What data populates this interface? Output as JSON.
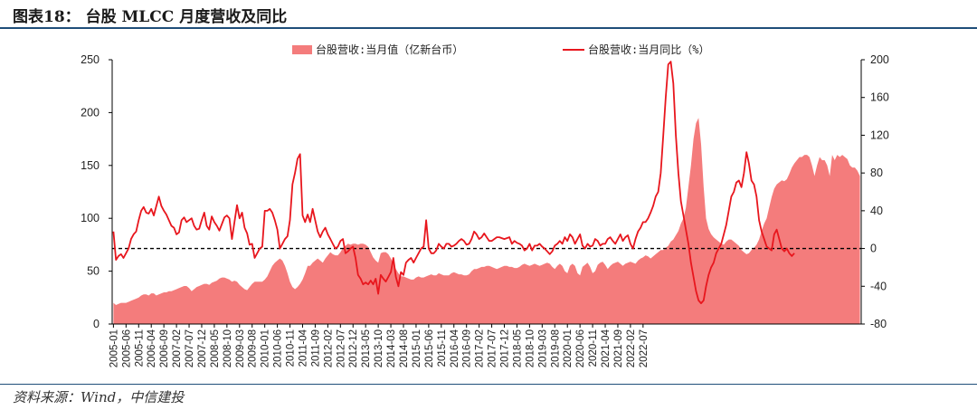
{
  "header": {
    "title": "图表18：  台股 MLCC 月度营收及同比"
  },
  "footer": {
    "source": "资料来源：Wind，中信建投"
  },
  "chart_data": {
    "type": "area",
    "title": "",
    "legend_placement": "top",
    "grid": false,
    "left_axis": {
      "ylim": [
        0,
        250
      ],
      "ticks": [
        0,
        50,
        100,
        150,
        200,
        250
      ]
    },
    "right_axis": {
      "ylim": [
        -80,
        200
      ],
      "ticks": [
        -80,
        -40,
        0,
        40,
        80,
        120,
        160,
        200
      ]
    },
    "x_tick_labels": [
      "2005-01",
      "2005-06",
      "2005-11",
      "2006-04",
      "2006-09",
      "2007-02",
      "2007-07",
      "2007-12",
      "2008-05",
      "2008-10",
      "2009-03",
      "2009-08",
      "2010-01",
      "2010-06",
      "2010-11",
      "2011-04",
      "2011-09",
      "2012-02",
      "2012-07",
      "2012-12",
      "2013-05",
      "2013-10",
      "2014-03",
      "2014-08",
      "2015-01",
      "2015-06",
      "2015-11",
      "2016-04",
      "2016-09",
      "2017-02",
      "2017-07",
      "2017-12",
      "2018-05",
      "2018-10",
      "2019-03",
      "2019-08",
      "2020-01",
      "2020-06",
      "2020-11",
      "2021-04",
      "2021-09",
      "2022-02",
      "2022-07"
    ],
    "zero_line_style": "dashed",
    "series": [
      {
        "name": "台股营收:当月值（亿新台币）",
        "type": "area",
        "axis": "left",
        "color": "#f47c7c",
        "values": [
          20,
          18,
          19,
          20,
          20,
          20,
          21,
          22,
          23,
          24,
          25,
          27,
          28,
          28,
          27,
          29,
          29,
          27,
          28,
          29,
          30,
          30,
          31,
          31,
          32,
          33,
          34,
          35,
          36,
          36,
          34,
          31,
          33,
          35,
          36,
          37,
          38,
          38,
          37,
          39,
          40,
          41,
          43,
          44,
          44,
          43,
          42,
          40,
          41,
          40,
          37,
          35,
          33,
          32,
          35,
          38,
          40,
          40,
          40,
          40,
          42,
          45,
          50,
          55,
          58,
          60,
          62,
          60,
          55,
          48,
          40,
          35,
          33,
          35,
          38,
          42,
          48,
          55,
          55,
          58,
          60,
          62,
          60,
          58,
          62,
          65,
          68,
          66,
          65,
          65,
          68,
          72,
          74,
          76,
          75,
          76,
          76,
          75,
          76,
          76,
          75,
          73,
          68,
          63,
          60,
          58,
          67,
          68,
          68,
          66,
          62,
          57,
          52,
          48,
          45,
          45,
          44,
          43,
          42,
          42,
          44,
          45,
          44,
          44,
          45,
          46,
          47,
          46,
          46,
          48,
          47,
          46,
          46,
          46,
          48,
          49,
          48,
          47,
          47,
          46,
          46,
          47,
          50,
          52,
          52,
          53,
          54,
          54,
          55,
          55,
          54,
          53,
          52,
          53,
          54,
          55,
          55,
          54,
          54,
          53,
          53,
          54,
          56,
          57,
          56,
          55,
          56,
          57,
          56,
          55,
          56,
          57,
          58,
          57,
          54,
          52,
          55,
          57,
          55,
          50,
          48,
          55,
          57,
          55,
          48,
          46,
          54,
          56,
          58,
          54,
          48,
          50,
          56,
          58,
          59,
          56,
          52,
          55,
          57,
          58,
          59,
          57,
          55,
          57,
          58,
          59,
          58,
          57,
          60,
          62,
          63,
          65,
          64,
          62,
          64,
          66,
          68,
          70,
          70,
          72,
          74,
          78,
          80,
          84,
          88,
          95,
          100,
          110,
          130,
          150,
          175,
          190,
          195,
          170,
          130,
          100,
          90,
          85,
          82,
          80,
          78,
          76,
          75,
          78,
          80,
          80,
          78,
          76,
          74,
          70,
          68,
          66,
          67,
          70,
          72,
          75,
          80,
          88,
          95,
          100,
          110,
          120,
          128,
          132,
          134,
          136,
          135,
          137,
          142,
          148,
          152,
          155,
          158,
          158,
          160,
          160,
          158,
          150,
          140,
          150,
          158,
          155,
          155,
          150,
          140,
          160,
          155,
          160,
          158,
          160,
          158,
          156,
          150,
          148,
          148,
          145,
          140
        ]
      },
      {
        "name": "台股营收:当月同比（%）",
        "type": "line",
        "axis": "right",
        "color": "#e8161d",
        "values": [
          18,
          -12,
          -8,
          -6,
          -10,
          -5,
          0,
          10,
          15,
          18,
          30,
          40,
          44,
          38,
          37,
          42,
          35,
          45,
          55,
          45,
          40,
          36,
          30,
          24,
          22,
          15,
          17,
          30,
          33,
          28,
          30,
          32,
          24,
          20,
          21,
          30,
          38,
          24,
          20,
          34,
          28,
          24,
          19,
          26,
          33,
          35,
          32,
          10,
          28,
          46,
          32,
          38,
          22,
          16,
          4,
          5,
          -10,
          -5,
          0,
          2,
          40,
          40,
          42,
          38,
          30,
          20,
          0,
          5,
          10,
          13,
          30,
          68,
          80,
          95,
          100,
          35,
          28,
          36,
          28,
          42,
          30,
          18,
          12,
          18,
          22,
          15,
          10,
          5,
          0,
          2,
          8,
          10,
          -5,
          -3,
          0,
          2,
          -10,
          -28,
          -32,
          -38,
          -36,
          -38,
          -34,
          -38,
          -32,
          -48,
          -28,
          -32,
          -35,
          -30,
          -25,
          -10,
          -30,
          -40,
          -25,
          -28,
          -15,
          -12,
          -10,
          -15,
          -10,
          -5,
          0,
          2,
          30,
          0,
          -5,
          -5,
          -2,
          5,
          2,
          0,
          5,
          5,
          2,
          3,
          5,
          8,
          10,
          8,
          4,
          5,
          10,
          18,
          15,
          10,
          12,
          16,
          12,
          8,
          8,
          10,
          12,
          12,
          11,
          10,
          11,
          12,
          5,
          8,
          6,
          5,
          3,
          -2,
          0,
          5,
          -2,
          3,
          3,
          5,
          2,
          0,
          -3,
          -6,
          -3,
          3,
          5,
          8,
          5,
          12,
          8,
          15,
          12,
          5,
          10,
          15,
          3,
          0,
          5,
          2,
          3,
          10,
          8,
          3,
          5,
          5,
          10,
          12,
          8,
          5,
          10,
          15,
          8,
          12,
          14,
          5,
          0,
          10,
          18,
          22,
          28,
          28,
          32,
          38,
          45,
          55,
          60,
          80,
          120,
          160,
          195,
          198,
          175,
          120,
          80,
          50,
          35,
          20,
          5,
          -15,
          -30,
          -45,
          -55,
          -58,
          -55,
          -40,
          -28,
          -20,
          -15,
          -5,
          0,
          5,
          15,
          25,
          40,
          55,
          60,
          70,
          72,
          65,
          80,
          102,
          90,
          72,
          68,
          55,
          30,
          18,
          10,
          2,
          0,
          -2,
          15,
          20,
          10,
          0,
          -3,
          0,
          -5,
          -8,
          -5
        ]
      }
    ]
  }
}
